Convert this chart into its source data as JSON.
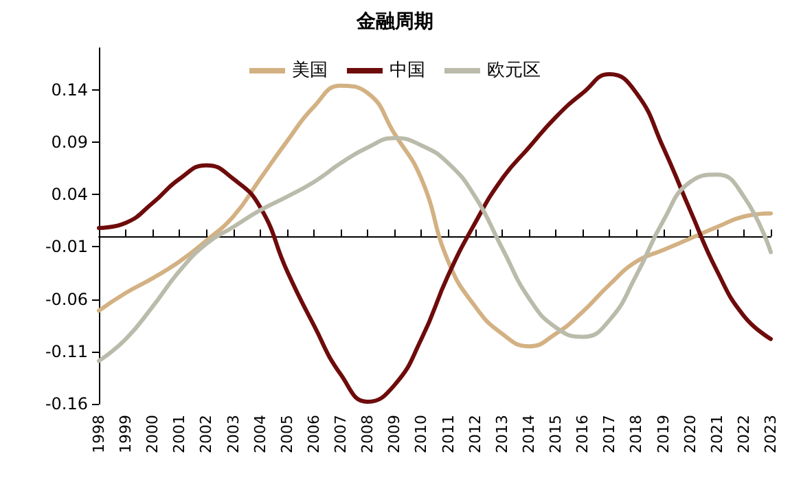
{
  "chart_data": {
    "type": "line",
    "title": "金融周期",
    "categories": [
      "1998",
      "1999",
      "2000",
      "2001",
      "2002",
      "2003",
      "2004",
      "2005",
      "2006",
      "2007",
      "2008",
      "2009",
      "2010",
      "2011",
      "2012",
      "2013",
      "2014",
      "2015",
      "2016",
      "2017",
      "2018",
      "2019",
      "2020",
      "2021",
      "2022",
      "2023"
    ],
    "series": [
      {
        "name": "美国",
        "color": "#d3b183",
        "values": [
          -0.071,
          -0.054,
          -0.04,
          -0.024,
          -0.004,
          0.019,
          0.055,
          0.091,
          0.124,
          0.144,
          0.137,
          0.098,
          0.055,
          -0.024,
          -0.067,
          -0.093,
          -0.105,
          -0.093,
          -0.072,
          -0.046,
          -0.024,
          -0.013,
          -0.002,
          0.009,
          0.019,
          0.022
        ]
      },
      {
        "name": "中国",
        "color": "#6e0b0b",
        "values": [
          0.008,
          0.013,
          0.032,
          0.055,
          0.068,
          0.055,
          0.028,
          -0.033,
          -0.085,
          -0.132,
          -0.158,
          -0.142,
          -0.098,
          -0.037,
          0.013,
          0.055,
          0.085,
          0.114,
          0.137,
          0.155,
          0.137,
          0.085,
          0.025,
          -0.033,
          -0.076,
          -0.098
        ]
      },
      {
        "name": "欧元区",
        "color": "#bbbbab",
        "values": [
          -0.119,
          -0.098,
          -0.067,
          -0.033,
          -0.007,
          0.009,
          0.025,
          0.038,
          0.052,
          0.07,
          0.085,
          0.094,
          0.087,
          0.07,
          0.038,
          -0.011,
          -0.059,
          -0.087,
          -0.096,
          -0.08,
          -0.037,
          0.015,
          0.052,
          0.059,
          0.038,
          -0.015
        ]
      }
    ],
    "ylim": [
      -0.16,
      0.18
    ],
    "yticks": [
      -0.16,
      -0.11,
      -0.06,
      -0.01,
      0.04,
      0.09,
      0.14
    ],
    "grid": false,
    "legend": "top",
    "marker": "none",
    "line_style": "solid"
  }
}
